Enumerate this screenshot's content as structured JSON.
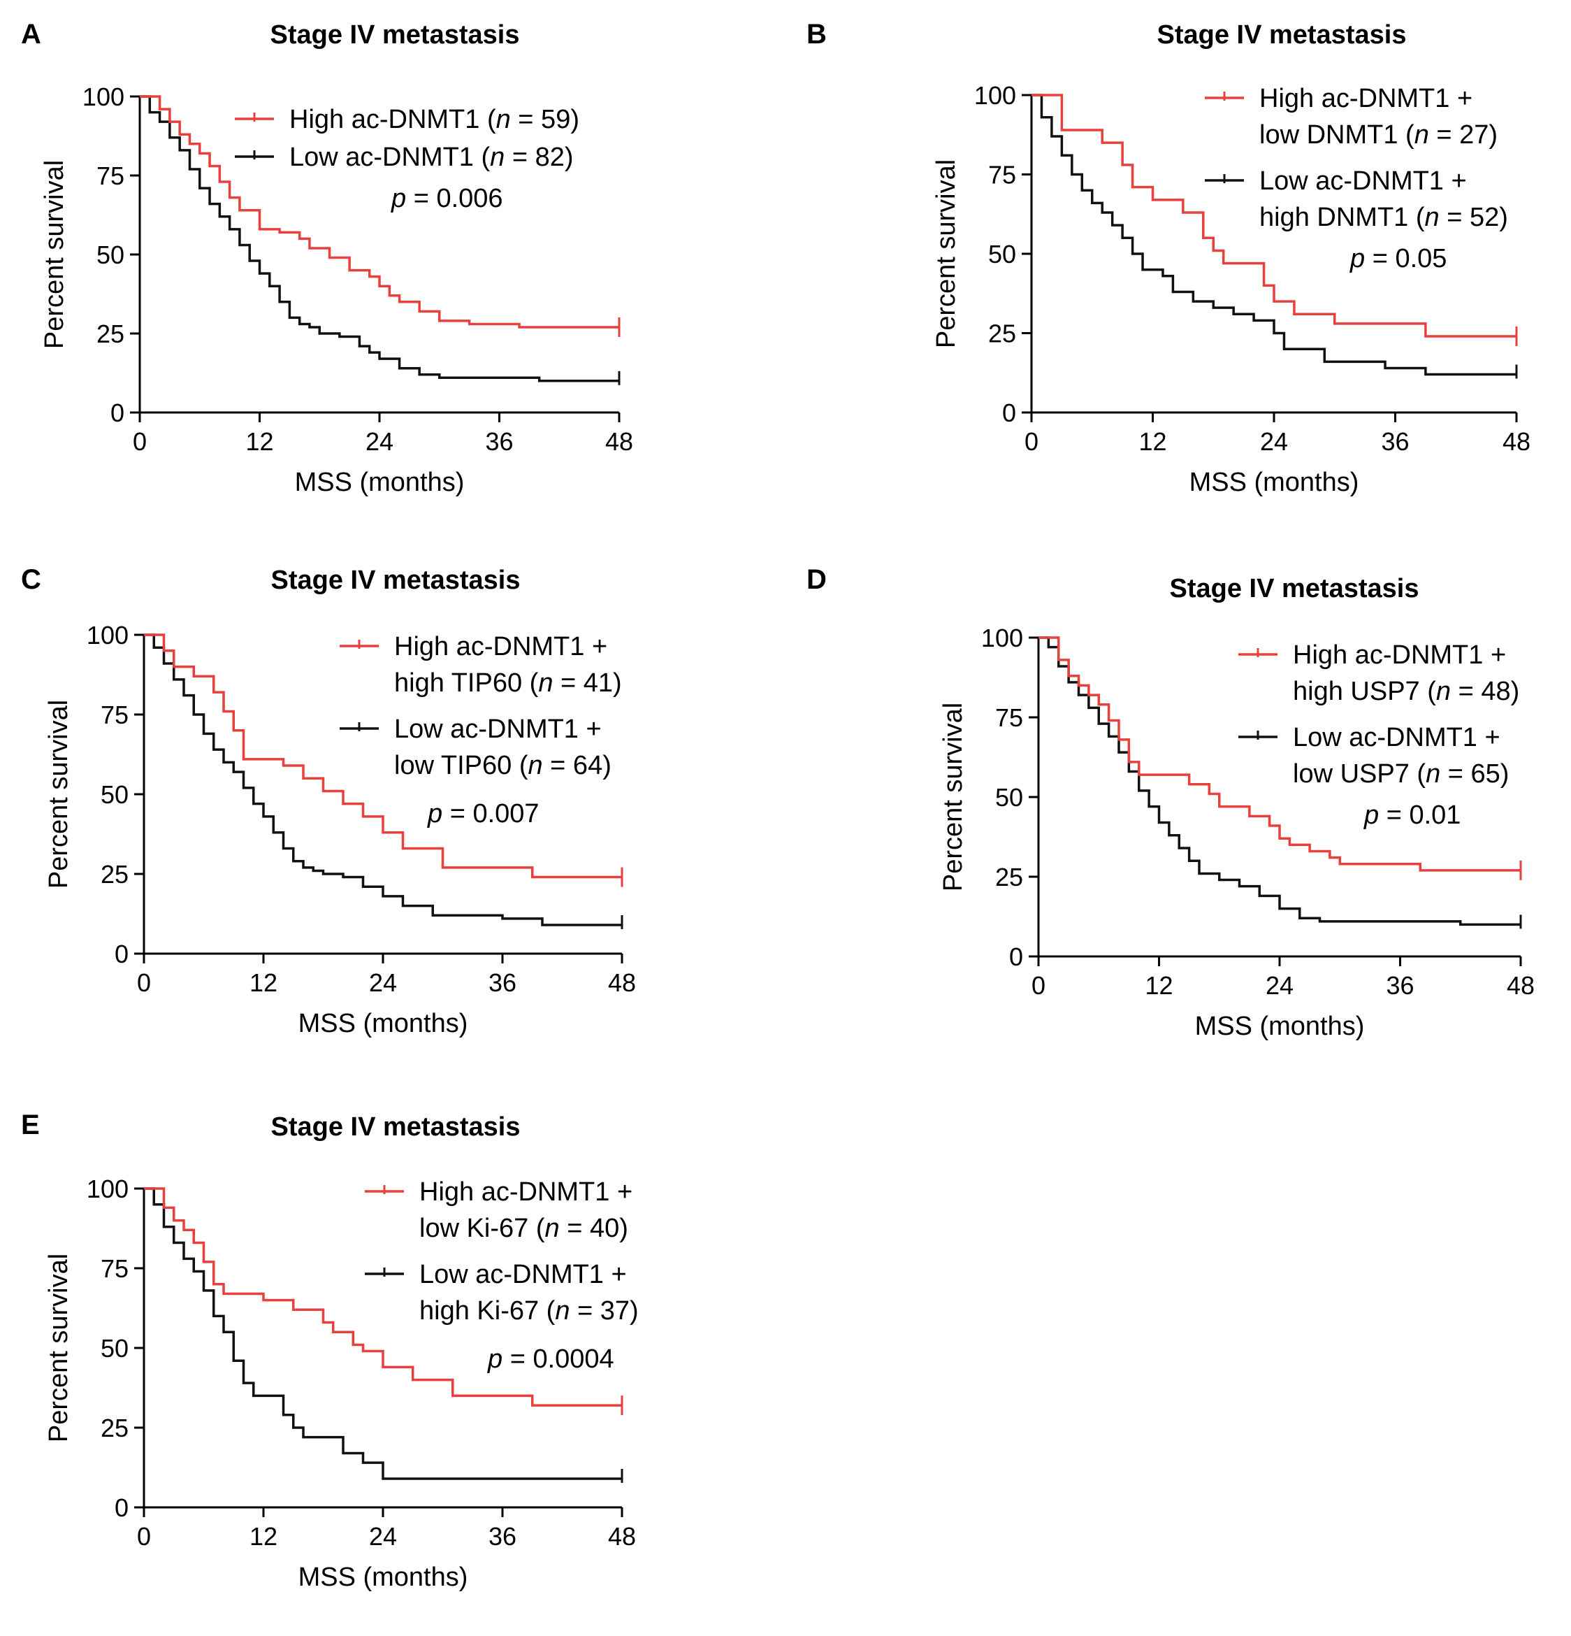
{
  "chart_data": [
    {
      "type": "line",
      "panel_label": "A",
      "title": "Stage IV metastasis",
      "xlabel": "MSS (months)",
      "ylabel": "Percent survival",
      "xlim": [
        0,
        48
      ],
      "ylim": [
        0,
        100
      ],
      "xticks": [
        "0",
        "12",
        "24",
        "36",
        "48"
      ],
      "yticks": [
        "0",
        "25",
        "50",
        "75",
        "100"
      ],
      "series": [
        {
          "name": "High ac-DNMT1 (n = 59)",
          "color": "#e8403c",
          "x": [
            0,
            2,
            3,
            4,
            5,
            6,
            7,
            8,
            9,
            10,
            12,
            14,
            16,
            17,
            19,
            21,
            23,
            24,
            25,
            26,
            28,
            30,
            33,
            38,
            48
          ],
          "y": [
            100,
            96,
            92,
            88,
            85,
            82,
            78,
            73,
            68,
            64,
            58,
            57,
            55,
            52,
            49,
            45,
            43,
            40,
            37,
            35,
            32,
            29,
            28,
            27,
            27
          ]
        },
        {
          "name": "Low ac-DNMT1 (n = 82)",
          "color": "#111111",
          "x": [
            0,
            1,
            2,
            3,
            4,
            5,
            6,
            7,
            8,
            9,
            10,
            11,
            12,
            13,
            14,
            15,
            16,
            17,
            18,
            20,
            22,
            23,
            24,
            26,
            28,
            30,
            34,
            40,
            48
          ],
          "y": [
            100,
            95,
            92,
            87,
            83,
            77,
            71,
            66,
            62,
            58,
            53,
            48,
            44,
            40,
            35,
            30,
            28,
            27,
            25,
            24,
            21,
            19,
            17,
            14,
            12,
            11,
            11,
            10,
            10
          ]
        }
      ],
      "p_value": "= 0.006"
    },
    {
      "type": "line",
      "panel_label": "B",
      "title": "Stage IV metastasis",
      "xlabel": "MSS (months)",
      "ylabel": "Percent survival",
      "xlim": [
        0,
        48
      ],
      "ylim": [
        0,
        100
      ],
      "xticks": [
        "0",
        "12",
        "24",
        "36",
        "48"
      ],
      "yticks": [
        "0",
        "25",
        "50",
        "75",
        "100"
      ],
      "series": [
        {
          "name": "High ac-DNMT1 + low DNMT1 (n = 27)",
          "color": "#e8403c",
          "x": [
            0,
            3,
            7,
            9,
            10,
            12,
            15,
            17,
            18,
            19,
            23,
            24,
            26,
            30,
            39,
            48
          ],
          "y": [
            100,
            89,
            85,
            78,
            71,
            67,
            63,
            55,
            51,
            47,
            40,
            35,
            31,
            28,
            24,
            24
          ]
        },
        {
          "name": "Low ac-DNMT1 + high DNMT1 (n = 52)",
          "color": "#111111",
          "x": [
            0,
            1,
            2,
            3,
            4,
            5,
            6,
            7,
            8,
            9,
            10,
            11,
            13,
            14,
            16,
            18,
            20,
            22,
            24,
            25,
            29,
            35,
            39,
            48
          ],
          "y": [
            100,
            93,
            87,
            81,
            75,
            70,
            66,
            63,
            59,
            55,
            50,
            45,
            43,
            38,
            35,
            33,
            31,
            29,
            25,
            20,
            16,
            14,
            12,
            12
          ]
        }
      ],
      "p_value": "= 0.05"
    },
    {
      "type": "line",
      "panel_label": "C",
      "title": "Stage IV metastasis",
      "xlabel": "MSS (months)",
      "ylabel": "Percent survival",
      "xlim": [
        0,
        48
      ],
      "ylim": [
        0,
        100
      ],
      "xticks": [
        "0",
        "12",
        "24",
        "36",
        "48"
      ],
      "yticks": [
        "0",
        "25",
        "50",
        "75",
        "100"
      ],
      "series": [
        {
          "name": "High ac-DNMT1 + high TIP60 (n = 41)",
          "color": "#e8403c",
          "x": [
            0,
            2,
            3,
            5,
            7,
            8,
            9,
            10,
            14,
            16,
            18,
            20,
            22,
            24,
            26,
            30,
            39,
            48
          ],
          "y": [
            100,
            95,
            90,
            87,
            82,
            76,
            70,
            61,
            59,
            55,
            51,
            47,
            43,
            38,
            33,
            27,
            24,
            24
          ]
        },
        {
          "name": "Low ac-DNMT1 + low TIP60 (n = 64)",
          "color": "#111111",
          "x": [
            0,
            1,
            2,
            3,
            4,
            5,
            6,
            7,
            8,
            9,
            10,
            11,
            12,
            13,
            14,
            15,
            16,
            17,
            18,
            20,
            22,
            24,
            26,
            29,
            36,
            40,
            48
          ],
          "y": [
            100,
            96,
            91,
            86,
            81,
            75,
            69,
            64,
            60,
            57,
            52,
            47,
            43,
            38,
            33,
            29,
            27,
            26,
            25,
            24,
            21,
            18,
            15,
            12,
            11,
            9,
            9
          ]
        }
      ],
      "p_value": "= 0.007"
    },
    {
      "type": "line",
      "panel_label": "D",
      "title": "Stage IV metastasis",
      "xlabel": "MSS (months)",
      "ylabel": "Percent survival",
      "xlim": [
        0,
        48
      ],
      "ylim": [
        0,
        100
      ],
      "xticks": [
        "0",
        "12",
        "24",
        "36",
        "48"
      ],
      "yticks": [
        "0",
        "25",
        "50",
        "75",
        "100"
      ],
      "series": [
        {
          "name": "High ac-DNMT1 + high USP7 (n = 48)",
          "color": "#e8403c",
          "x": [
            0,
            2,
            3,
            4,
            5,
            6,
            7,
            8,
            9,
            10,
            15,
            17,
            18,
            21,
            23,
            24,
            25,
            27,
            29,
            30,
            38,
            48
          ],
          "y": [
            100,
            93,
            88,
            85,
            82,
            79,
            74,
            68,
            61,
            57,
            54,
            51,
            47,
            44,
            41,
            37,
            35,
            33,
            31,
            29,
            27,
            27
          ]
        },
        {
          "name": "Low ac-DNMT1 + low USP7 (n = 65)",
          "color": "#111111",
          "x": [
            0,
            1,
            2,
            3,
            4,
            5,
            6,
            7,
            8,
            9,
            10,
            11,
            12,
            13,
            14,
            15,
            16,
            18,
            20,
            22,
            24,
            26,
            28,
            35,
            42,
            48
          ],
          "y": [
            100,
            97,
            91,
            86,
            82,
            78,
            73,
            69,
            64,
            58,
            52,
            47,
            42,
            38,
            34,
            30,
            26,
            24,
            22,
            19,
            15,
            12,
            11,
            11,
            10,
            10
          ]
        }
      ],
      "p_value": "= 0.01"
    },
    {
      "type": "line",
      "panel_label": "E",
      "title": "Stage IV metastasis",
      "xlabel": "MSS (months)",
      "ylabel": "Percent survival",
      "xlim": [
        0,
        48
      ],
      "ylim": [
        0,
        100
      ],
      "xticks": [
        "0",
        "12",
        "24",
        "36",
        "48"
      ],
      "yticks": [
        "0",
        "25",
        "50",
        "75",
        "100"
      ],
      "series": [
        {
          "name": "High ac-DNMT1 + low Ki-67 (n = 40)",
          "color": "#e8403c",
          "x": [
            0,
            2,
            3,
            4,
            5,
            6,
            7,
            8,
            12,
            15,
            18,
            19,
            21,
            22,
            24,
            27,
            31,
            39,
            48
          ],
          "y": [
            100,
            94,
            90,
            87,
            83,
            77,
            70,
            67,
            65,
            62,
            58,
            55,
            51,
            49,
            44,
            40,
            35,
            32,
            32
          ]
        },
        {
          "name": "Low ac-DNMT1 + high Ki-67 (n = 37)",
          "color": "#111111",
          "x": [
            0,
            1,
            2,
            3,
            4,
            5,
            6,
            7,
            8,
            9,
            10,
            11,
            14,
            15,
            16,
            20,
            22,
            24,
            48
          ],
          "y": [
            100,
            95,
            88,
            83,
            78,
            74,
            68,
            60,
            55,
            46,
            39,
            35,
            29,
            25,
            22,
            17,
            14,
            9,
            9
          ]
        }
      ],
      "p_value": "= 0.0004"
    }
  ]
}
